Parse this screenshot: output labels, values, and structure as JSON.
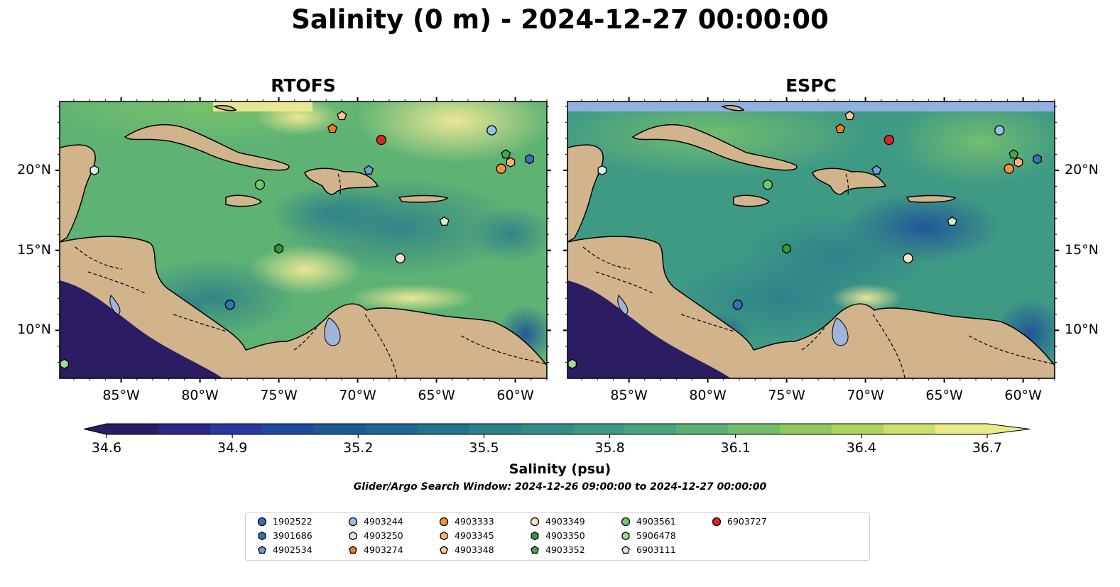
{
  "title": "Salinity (0 m) - 2024-12-27 00:00:00",
  "panels": [
    {
      "id": "rtofs",
      "title": "RTOFS"
    },
    {
      "id": "espc",
      "title": "ESPC"
    }
  ],
  "lon_ticks": [
    "85°W",
    "80°W",
    "75°W",
    "70°W",
    "65°W",
    "60°W"
  ],
  "lat_ticks": [
    "20°N",
    "15°N",
    "10°N"
  ],
  "colorbar": {
    "label": "Salinity (psu)",
    "ticks": [
      "34.6",
      "34.9",
      "35.2",
      "35.5",
      "35.8",
      "36.1",
      "36.4",
      "36.7"
    ],
    "range": [
      34.6,
      36.7
    ],
    "extend": "both",
    "colors": [
      "#2c1c63",
      "#2b2885",
      "#28389f",
      "#1f4a9e",
      "#1b5a95",
      "#1c6791",
      "#22748e",
      "#2a808a",
      "#338c86",
      "#3c9883",
      "#48a47d",
      "#5bb072",
      "#73bc69",
      "#8ec85f",
      "#acd45e",
      "#cbe06c",
      "#e9ea8a"
    ]
  },
  "colors": {
    "land": "#d2b48c",
    "lake": "#9fb4d8",
    "ocean_low": "#2c1c63",
    "ocean_mid": "#2f8a86",
    "ocean_high": "#8fcc62",
    "fresh": "#f3ea96",
    "nodata_band": "#92b0e2"
  },
  "search_window": "Glider/Argo Search Window: 2024-12-26 09:00:00 to 2024-12-27 00:00:00",
  "legend": [
    {
      "id": "1902522",
      "marker": "circle",
      "color": "#2f73b8"
    },
    {
      "id": "3901686",
      "marker": "hexagon",
      "color": "#2f73b8"
    },
    {
      "id": "4902534",
      "marker": "pentagon",
      "color": "#6a9fd8"
    },
    {
      "id": "4903244",
      "marker": "circle",
      "color": "#95c2ec"
    },
    {
      "id": "4903250",
      "marker": "hexagon",
      "color": "#d8e9f8"
    },
    {
      "id": "4903274",
      "marker": "pentagon",
      "color": "#f47c0f"
    },
    {
      "id": "4903333",
      "marker": "circle",
      "color": "#f5913a"
    },
    {
      "id": "4903345",
      "marker": "hexagon",
      "color": "#fbb26c"
    },
    {
      "id": "4903348",
      "marker": "pentagon",
      "color": "#fcc98e"
    },
    {
      "id": "4903349",
      "marker": "circle",
      "color": "#fde0c2"
    },
    {
      "id": "4903350",
      "marker": "hexagon",
      "color": "#2e9a3a"
    },
    {
      "id": "4903352",
      "marker": "pentagon",
      "color": "#3fad47"
    },
    {
      "id": "4903561",
      "marker": "circle",
      "color": "#71c56c"
    },
    {
      "id": "5906478",
      "marker": "hexagon",
      "color": "#9fdc92"
    },
    {
      "id": "6903111",
      "marker": "pentagon",
      "color": "#d3f2cb"
    },
    {
      "id": "6903727",
      "marker": "circle",
      "color": "#d62728"
    }
  ],
  "floats": [
    {
      "id": "1902522",
      "lon": -78.1,
      "lat": 11.6
    },
    {
      "id": "3901686",
      "lon": -59.1,
      "lat": 20.7
    },
    {
      "id": "4902534",
      "lon": -69.3,
      "lat": 20.0
    },
    {
      "id": "4903244",
      "lon": -61.5,
      "lat": 22.5
    },
    {
      "id": "4903250",
      "lon": -86.7,
      "lat": 20.0
    },
    {
      "id": "4903274",
      "lon": -71.6,
      "lat": 22.6
    },
    {
      "id": "4903333",
      "lon": -60.9,
      "lat": 20.1
    },
    {
      "id": "4903345",
      "lon": -60.3,
      "lat": 20.5
    },
    {
      "id": "4903348",
      "lon": -71.0,
      "lat": 23.4
    },
    {
      "id": "4903349",
      "lon": -67.3,
      "lat": 14.5
    },
    {
      "id": "4903350",
      "lon": -75.0,
      "lat": 15.1
    },
    {
      "id": "4903352",
      "lon": -60.6,
      "lat": 21.0
    },
    {
      "id": "4903561",
      "lon": -76.2,
      "lat": 19.1
    },
    {
      "id": "5906478",
      "lon": -88.6,
      "lat": 7.9
    },
    {
      "id": "6903111",
      "lon": -64.5,
      "lat": 16.8
    },
    {
      "id": "6903727",
      "lon": -68.5,
      "lat": 21.9
    }
  ]
}
